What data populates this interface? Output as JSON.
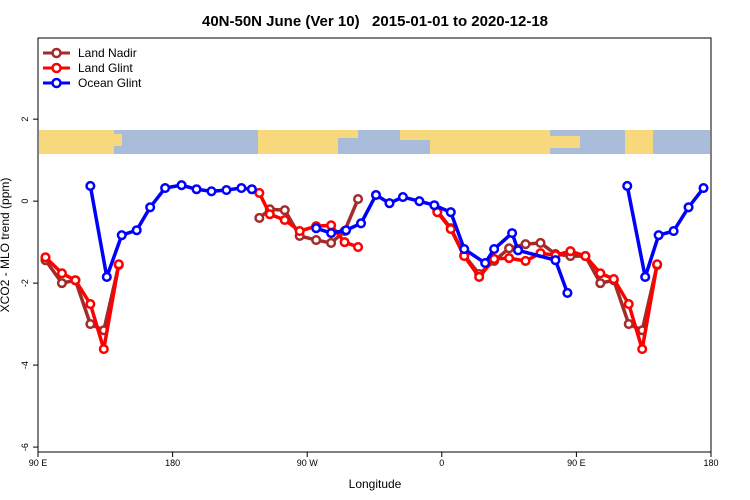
{
  "chart_data": {
    "type": "line",
    "title": "40N-50N June (Ver 10)   2015-01-01 to 2020-12-18",
    "x_label": "Longitude",
    "y_label": "XCO2 - MLO trend (ppm)",
    "xlim": [
      90,
      540
    ],
    "ylim": [
      -6.12,
      3.98
    ],
    "xticks": [
      {
        "value": 90,
        "label": "90 E"
      },
      180,
      {
        "value": 270,
        "label": "90 W"
      },
      {
        "value": 360,
        "label": "0"
      },
      {
        "value": 450,
        "label": "90 E"
      },
      {
        "value": 540,
        "label": "180"
      }
    ],
    "yticks": [
      -6,
      -4,
      -2,
      0,
      2
    ],
    "legend": "top-left",
    "series": [
      {
        "name": "Land Nadir",
        "color": "#a52a2a",
        "x": [
          95,
          106,
          115,
          125,
          134,
          144,
          190,
          238,
          245,
          255,
          265,
          276,
          286,
          295,
          304,
          330,
          357,
          366,
          375,
          385,
          395,
          405,
          416,
          426,
          436,
          446,
          456,
          466,
          475,
          485,
          494,
          504
        ],
        "values": [
          -1.44,
          -2.0,
          -1.93,
          -3.0,
          -3.15,
          -1.56,
          null,
          -0.41,
          -0.2,
          -0.22,
          -0.85,
          -0.95,
          -1.02,
          -0.73,
          0.05,
          null,
          -0.24,
          -0.66,
          -1.32,
          -1.78,
          -1.46,
          -1.15,
          -1.05,
          -1.02,
          -1.29,
          -1.34,
          -1.34,
          -2.0,
          -1.93,
          -3.0,
          -3.15,
          -1.56
        ]
      },
      {
        "name": "Land Glint",
        "color": "#ff0000",
        "x": [
          95,
          106,
          115,
          125,
          134,
          144,
          190,
          238,
          245,
          255,
          265,
          276,
          286,
          295,
          304,
          330,
          357,
          366,
          375,
          385,
          395,
          405,
          416,
          426,
          436,
          446,
          456,
          466,
          475,
          485,
          494,
          504
        ],
        "values": [
          -1.37,
          -1.76,
          -1.93,
          -2.51,
          -3.61,
          -1.54,
          null,
          0.2,
          -0.32,
          -0.46,
          -0.73,
          -0.61,
          -0.59,
          -1.0,
          -1.12,
          null,
          -0.27,
          -0.68,
          -1.34,
          -1.85,
          -1.41,
          -1.39,
          -1.46,
          -1.27,
          -1.32,
          -1.22,
          -1.34,
          -1.76,
          -1.9,
          -2.51,
          -3.61,
          -1.54
        ]
      },
      {
        "name": "Ocean Glint",
        "color": "#0000ff",
        "x": [
          125,
          136,
          146,
          156,
          165,
          175,
          186,
          196,
          206,
          216,
          226,
          233,
          255,
          276,
          286,
          296,
          306,
          316,
          325,
          334,
          345,
          355,
          366,
          375,
          389,
          395,
          407,
          411,
          436,
          444,
          465,
          484,
          496,
          505,
          515,
          525,
          535
        ],
        "values": [
          0.37,
          -1.85,
          -0.83,
          -0.71,
          -0.15,
          0.32,
          0.39,
          0.29,
          0.24,
          0.27,
          0.32,
          0.29,
          null,
          -0.66,
          -0.78,
          -0.71,
          -0.54,
          0.15,
          -0.05,
          0.1,
          0,
          -0.1,
          -0.27,
          -1.17,
          -1.51,
          -1.17,
          -0.78,
          -1.2,
          -1.44,
          -2.24,
          null,
          0.37,
          -1.85,
          -0.83,
          -0.73,
          -0.15,
          0.32
        ]
      }
    ]
  }
}
